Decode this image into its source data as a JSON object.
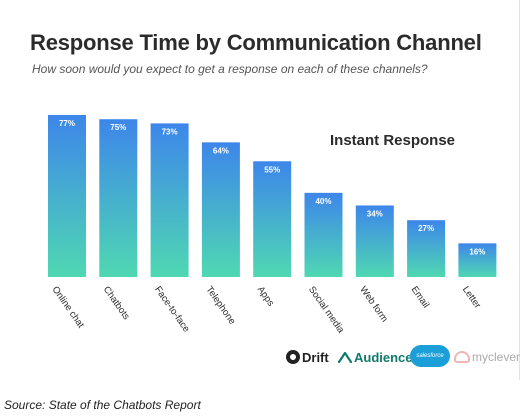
{
  "chart_data": {
    "type": "bar",
    "title": "Response Time by Communication Channel",
    "subtitle": "How soon would you expect to get a response on each of these channels?",
    "categories": [
      "Online chat",
      "Chatbots",
      "Face-to-face",
      "Telephone",
      "Apps",
      "Social media",
      "Web form",
      "Email",
      "Letter"
    ],
    "values": [
      77,
      75,
      73,
      64,
      55,
      40,
      34,
      27,
      16
    ],
    "value_labels": [
      "77%",
      "75%",
      "73%",
      "64%",
      "55%",
      "40%",
      "34%",
      "27%",
      "16%"
    ],
    "series": [
      {
        "name": "Instant Response",
        "values": [
          77,
          75,
          73,
          64,
          55,
          40,
          34,
          27,
          16
        ]
      }
    ],
    "ylim": [
      0,
      100
    ],
    "annotation": "Instant Response",
    "colors": {
      "bar_top": "#3d86ea",
      "bar_bottom": "#4fd8b2",
      "label": "#ffffff",
      "text": "#2b2b2b"
    },
    "grid": false
  },
  "logos": {
    "drift": "Drift",
    "audience": "Audience",
    "salesforce": "salesforce",
    "myclever": "myclever"
  },
  "source": "Source: State of the Chatbots Report"
}
